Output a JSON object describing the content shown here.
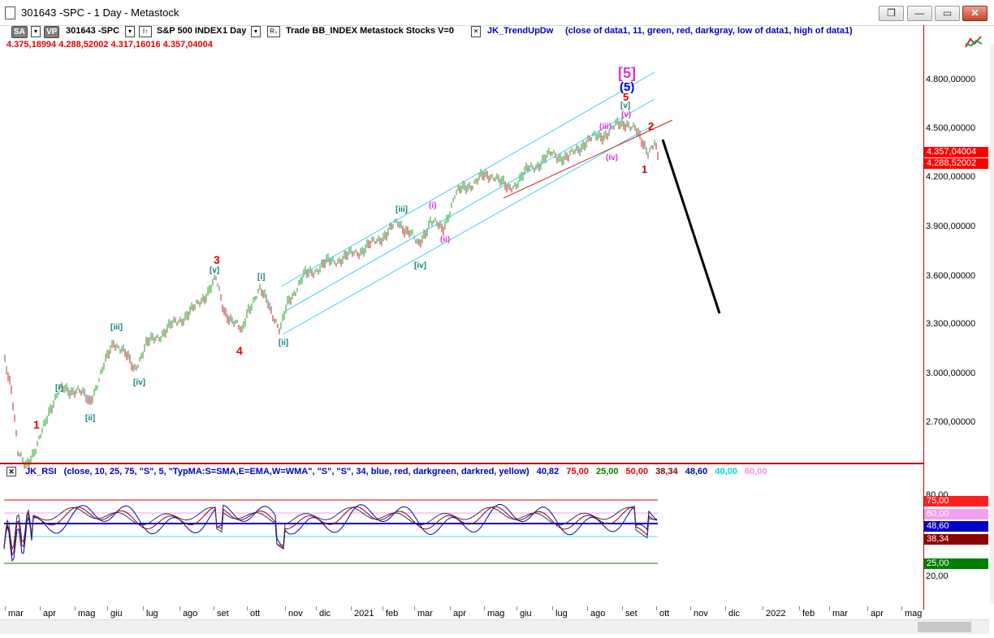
{
  "window": {
    "title": "301643 -SPC - 1 Day - Metastock",
    "controls": [
      "❐",
      "—",
      "▭",
      "✕"
    ]
  },
  "toolbar": {
    "sa": "SA",
    "vp": "VP",
    "symbol": "301643 -SPC",
    "interval_icon": "I↑",
    "name": "S&P 500 INDEX",
    "period": "1 Day",
    "r_icon": "R↓",
    "extra": "Trade  BB_INDEX  Metastock  Stocks  V=0",
    "indicator": "JK_TrendUpDw",
    "indicator_params": "(close of data1,  11,  green,  red,  darkgray,  low of data1,  high of data1)"
  },
  "ohlc": "4.375,18994  4.288,52002  4.317,16016  4.357,04004",
  "price_axis": [
    "4.800,00000",
    "4.500,00000",
    "4.200,00000",
    "3.900,00000",
    "3.600,00000",
    "3.300,00000",
    "3.000,00000",
    "2.700,00000"
  ],
  "price_tags": [
    {
      "text": "4.357,04004",
      "color": "#ff0000",
      "fg": "#ffffff"
    },
    {
      "text": "4.288,52002",
      "color": "#ff0000",
      "fg": "#ffffff"
    }
  ],
  "rsi": {
    "name": "JK_RSI",
    "params": "(close,  10,  25,  75,  \"S\",  5,  \"TypMA:S=SMA,E=EMA,W=WMA\",  \"S\",  \"S\",  34,  blue,  red,  darkgreen,  darkred,  yellow)",
    "values": [
      {
        "text": "40,82",
        "color": "#0000c0"
      },
      {
        "text": "75,00",
        "color": "#e00000"
      },
      {
        "text": "25,00",
        "color": "#008000"
      },
      {
        "text": "50,00",
        "color": "#e00000"
      },
      {
        "text": "38,34",
        "color": "#8b0000"
      },
      {
        "text": "48,60",
        "color": "#0000c0"
      },
      {
        "text": "40,00",
        "color": "#00d0e0"
      },
      {
        "text": "60,00",
        "color": "#f090e0"
      }
    ],
    "axis": [
      "80,00",
      "20,00"
    ],
    "tags": [
      {
        "text": "75,00",
        "color": "#ff2020",
        "fg": "#ffffff"
      },
      {
        "text": "60,00",
        "color": "#f0a0f0",
        "fg": "#ffffff"
      },
      {
        "text": "48,60",
        "color": "#0000c8",
        "fg": "#ffffff"
      },
      {
        "text": "38,34",
        "color": "#8b0000",
        "fg": "#ffffff"
      },
      {
        "text": "25,00",
        "color": "#008000",
        "fg": "#ffffff"
      }
    ]
  },
  "months": [
    "mar",
    "apr",
    "mag",
    "giu",
    "lug",
    "ago",
    "set",
    "ott",
    "nov",
    "dic",
    "2021",
    "feb",
    "mar",
    "apr",
    "mag",
    "giu",
    "lug",
    "ago",
    "set",
    "ott",
    "nov",
    "dic",
    "2022",
    "feb",
    "mar",
    "apr",
    "mag"
  ],
  "wave_labels": {
    "five_big": "[5]",
    "five_paren": "(5)",
    "five": "5",
    "v_small": "[v]",
    "v_paren": "(v)",
    "iii_paren": "(iii)",
    "iv_paren": "(iv)",
    "two": "2",
    "one": "1",
    "i_paren": "(i)",
    "ii_paren": "(ii)",
    "iii_b": "[iii]",
    "iv_b": "[iv]",
    "three": "3",
    "v_b": "[v]",
    "four": "4",
    "i_b": "[i]",
    "ii_b": "[ii]",
    "iii_b2": "[iii]",
    "iv_b2": "[iv]",
    "i_b2": "[i]",
    "ii_b2": "[ii]",
    "one_low": "1"
  }
}
